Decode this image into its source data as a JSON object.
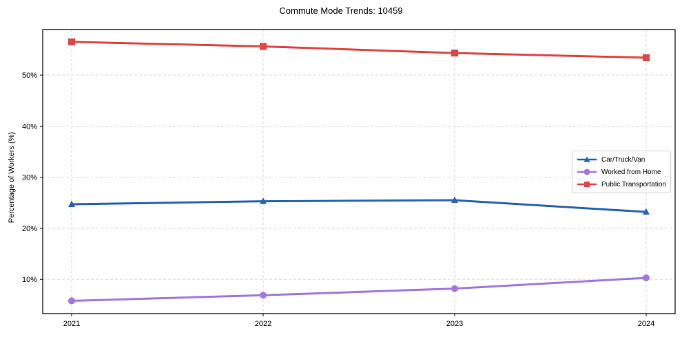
{
  "chart_data": {
    "type": "line",
    "title": "Commute Mode Trends: 10459",
    "xlabel": "",
    "ylabel": "Percentage of Workers (%)",
    "x": [
      "2021",
      "2022",
      "2023",
      "2024"
    ],
    "ylim": [
      3.3,
      58.9
    ],
    "yticks": [
      10,
      20,
      30,
      40,
      50
    ],
    "ytick_labels": [
      "10%",
      "20%",
      "30%",
      "40%",
      "50%"
    ],
    "grid": true,
    "legend_position": "center right",
    "series": [
      {
        "name": "Car/Truck/Van",
        "color": "#2a62b5",
        "marker": "triangle",
        "values": [
          24.7,
          25.3,
          25.5,
          23.2
        ]
      },
      {
        "name": "Worked from Home",
        "color": "#a178dc",
        "marker": "circle",
        "values": [
          5.8,
          6.9,
          8.2,
          10.3
        ]
      },
      {
        "name": "Public Transportation",
        "color": "#e04545",
        "marker": "square",
        "values": [
          56.5,
          55.6,
          54.3,
          53.4
        ]
      }
    ]
  }
}
